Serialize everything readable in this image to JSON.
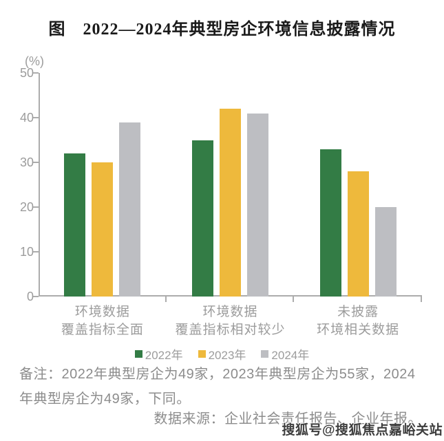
{
  "chart_data": {
    "type": "bar",
    "title": "图　2022—2024年典型房企环境信息披露情况",
    "unit": "(%)",
    "categories": [
      "环境数据\n覆盖指标全面",
      "环境数据\n覆盖指标相对较少",
      "未披露\n环境相关数据"
    ],
    "series": [
      {
        "name": "2022年",
        "color": "#337C45",
        "values": [
          32,
          35,
          33
        ]
      },
      {
        "name": "2023年",
        "color": "#EEB93C",
        "values": [
          30,
          42,
          28
        ]
      },
      {
        "name": "2024年",
        "color": "#BDBEC2",
        "values": [
          39,
          41,
          20
        ]
      }
    ],
    "ylim": [
      0,
      50
    ],
    "yticks": [
      0,
      10,
      20,
      30,
      40,
      50
    ],
    "grid": false,
    "legend_position": "bottom"
  },
  "note": "备注：2022年典型房企为49家，2023年典型房企为55家，2024年典型房企为49家，下同。",
  "source": "数据来源：企业社会责任报告、企业年报。",
  "watermark": "搜狐号@搜狐焦点嘉峪关站",
  "colors": {
    "axis": "#ACACAC",
    "tick_text": "#9C9C9C",
    "note_text": "#8C8C8C"
  }
}
